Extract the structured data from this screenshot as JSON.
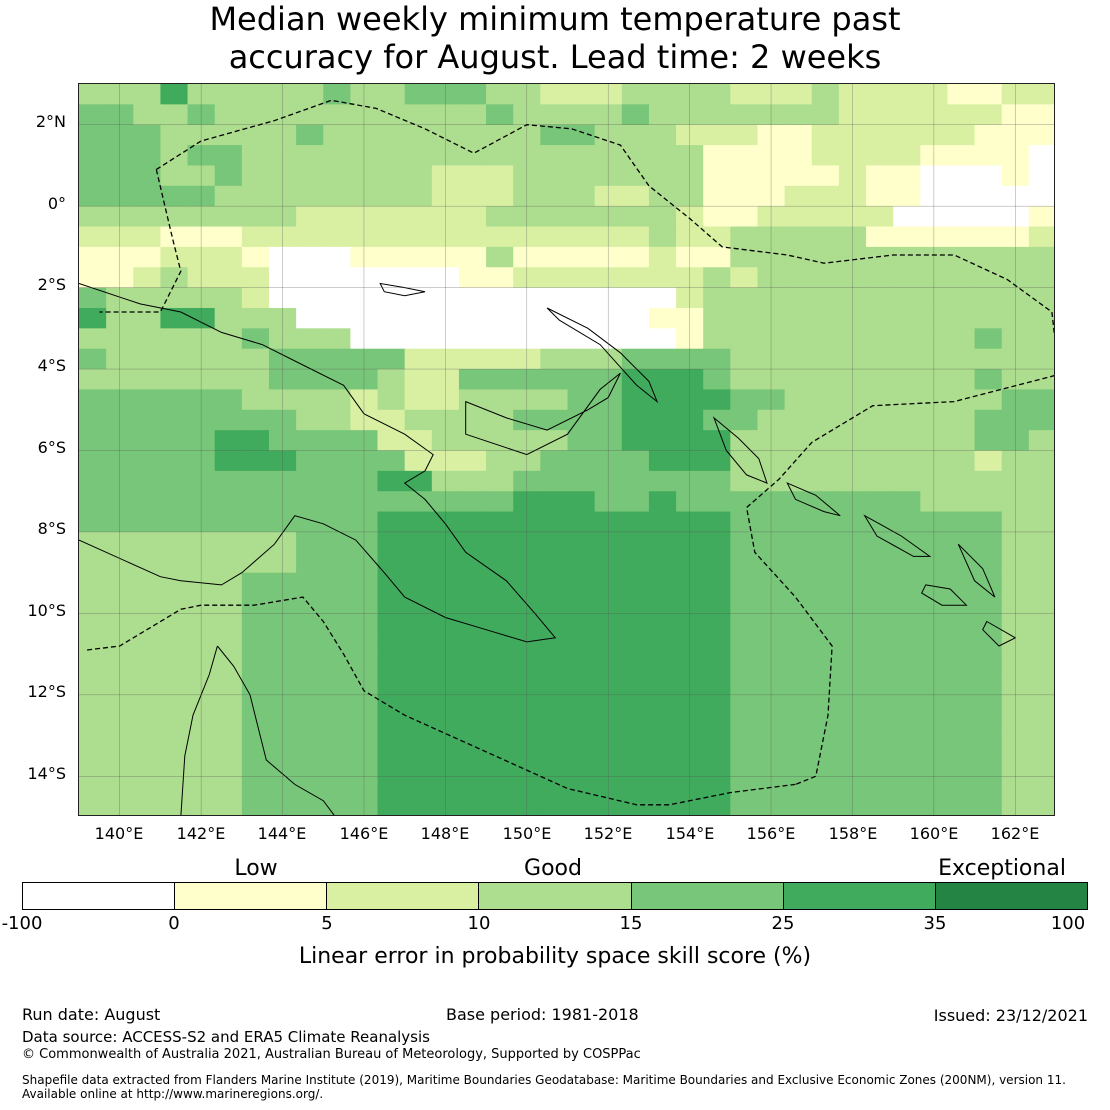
{
  "title": {
    "line1": "Median weekly minimum temperature past",
    "line2": "accuracy for August. Lead time: 2 weeks"
  },
  "map": {
    "lat_labels": [
      "2°N",
      "0°",
      "2°S",
      "4°S",
      "6°S",
      "8°S",
      "10°S",
      "12°S",
      "14°S"
    ],
    "lon_labels": [
      "140°E",
      "142°E",
      "144°E",
      "146°E",
      "148°E",
      "150°E",
      "152°E",
      "154°E",
      "156°E",
      "158°E",
      "160°E",
      "162°E"
    ],
    "lon_range": [
      139,
      163
    ],
    "lat_range": [
      -15,
      3
    ],
    "grid_lines": true,
    "skill_grid_rows": [
      "DDDFDDDDDEDDEEEDDCCCDDDDCCCDCCCCBBCC",
      "EEDDEDDDDDDDDDDEDDDDEDDDDDDDCCCCCCBB",
      "EEEDDDDDEDDDDDDDDEEDDDCCCBBCCCCCCBBB",
      "EEEDEEDDDDDDDDDDDDDDDDDBBBBCCCCBBBBA",
      "EEEDDEDDDDDDDCCCDDDDDDDBBBBBCBBAAABA",
      "EEEEEDDDDDDDDCCCDDDCCDDBBBCCCBBAAAAA",
      "DDDDDDDDCCCCCCCDDDDDDDCBBCCCCCAAAAAB",
      "CCCBBBCCCCCCCCCCCCCCCDCCDDDDDBBBBBBC",
      "BBBCCCBAAABBBBBDBBBBBCBBDDDDDDDDDDDD",
      "BBCDCCCAAAAAAABBCCCCCCCDCDDDDDDDDDDD",
      "EDDDDDCAAAAAAAAAAAAAAACDDDDDDDDDDDDD",
      "FDDFFDDDAAAAAAAAAAAAABBDDDDDDDDDDDDD",
      "DDDDDDEDDDAAAAAAAAAAAABDDDDDDDDDDEDD",
      "EDDDDDDEEEEECCCCCDDDEEEEDDDDDDDDDDDD",
      "DDDDDDDEEEEDCCEEEEEEFFFEDDDDDDDDDEDD",
      "EEEEEEDDDDCDCCDDDDEEFFFFEEDDDDDDDDEE",
      "EEEEEEEEDDCCDDDDEEEEFFFEEDDDDDDDDEEE",
      "EEEEEFFEEEECCDDDDDEEFFFFDDDDDDDDDEED",
      "EEEEEFFFEEEECCCDDEEEEFFFDDDDDDDDDCDD",
      "EEEEEEEEEEEFFDDDEEEEEEEEDDDDDDDDDDDD",
      "EEEEEEEEEEEEEEEEFFFEEFEEEEEEEEEDDDDD",
      "EEEEEEEEEEEFFFFFFFFFFFFFEEEEEEEEEEDD",
      "DDDDDDDDEEEFFFFFFFFFFFFFEEEEEEEEEEDD",
      "DDDDDDDDEEEFFFFFFFFFFFFFEEEEEEEEEEDD",
      "DDDDDDEEEEEFFFFFFFFFFFFFEEEEEEEEEEDD",
      "DDDDDDEEEEEFFFFFFFFFFFFFEEEEEEEEEEDD",
      "DDDDDDEEEEEFFFFFFFFFFFFFEEEEEEEEEEDD",
      "DDDDDDEEEEEFFFFFFFFFFFFFEEEEEEEEEEDD",
      "DDDDDDEEEEEFFFFFFFFFFFFFEEEEEEEEEEDD",
      "DDDDDDEEEEEFFFFFFFFFFFFFEEEEEEEEEEDD",
      "DDDDDDEEEEEFFFFFFFFFFFFFEEEEEEEEEEDD",
      "DDDDDDEEEEEFFFFFFFFFFFFFEEEEEEEEEEDD",
      "DDDDDDEEEEEFFFFFFFFFFFFFEEEEEEEEEEDD",
      "DDDDDDEEEEEFFFFFFFFFFFFFEEEEEEEEEEDD",
      "DDDDDDEEEEEFFFFFFFFFFFFFEEEEEEEEEEDD",
      "DDDDDDEEEEEFFFFFFFFFFFFFEEEEEEEEEEDD"
    ]
  },
  "colorbar": {
    "words": [
      "Low",
      "Good",
      "Exceptional"
    ],
    "ticks": [
      "-100",
      "0",
      "5",
      "10",
      "15",
      "25",
      "35",
      "100"
    ],
    "colors": [
      "#ffffff",
      "#ffffcc",
      "#d9f0a3",
      "#addd8e",
      "#78c679",
      "#41ab5d",
      "#238443"
    ],
    "label": "Linear error in probability space skill score (%)"
  },
  "footer": {
    "run_date": "Run date: August",
    "base_period": "Base period: 1981-2018",
    "issued": "Issued: 23/12/2021",
    "data_source": "Data source: ACCESS-S2 and ERA5 Climate Reanalysis",
    "copyright": "© Commonwealth of Australia 2021, Australian Bureau of Meteorology, Supported by COSPPac",
    "shapefile_line1": "Shapefile data extracted from Flanders Marine Institute (2019), Maritime Boundaries Geodatabase: Maritime Boundaries and Exclusive Economic Zones (200NM), version 11.",
    "shapefile_line2": "Available online at http://www.marineregions.org/."
  }
}
